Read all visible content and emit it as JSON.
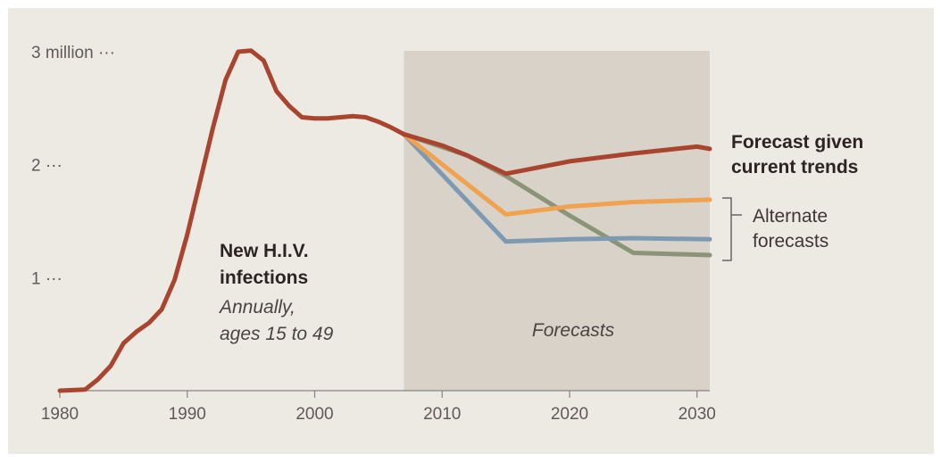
{
  "chart_data": {
    "type": "line",
    "xlim": [
      1980,
      2031
    ],
    "ylim": [
      0,
      3
    ],
    "x_ticks": [
      {
        "value": 1980,
        "label": "1980"
      },
      {
        "value": 1990,
        "label": "1990"
      },
      {
        "value": 2000,
        "label": "2000"
      },
      {
        "value": 2010,
        "label": "2010"
      },
      {
        "value": 2020,
        "label": "2020"
      },
      {
        "value": 2030,
        "label": "2030"
      }
    ],
    "y_ticks": [
      {
        "value": 1,
        "label": "1 ···"
      },
      {
        "value": 2,
        "label": "2 ···"
      },
      {
        "value": 3,
        "label": "3 million ···"
      }
    ],
    "forecast_band": {
      "from": 2007,
      "to": 2031,
      "label": "Forecasts"
    },
    "series": [
      {
        "role": "historical",
        "color": "#a9452e",
        "points": [
          [
            1980,
            0.0
          ],
          [
            1982,
            0.01
          ],
          [
            1983,
            0.1
          ],
          [
            1984,
            0.22
          ],
          [
            1985,
            0.42
          ],
          [
            1986,
            0.52
          ],
          [
            1987,
            0.6
          ],
          [
            1988,
            0.72
          ],
          [
            1989,
            0.98
          ],
          [
            1990,
            1.38
          ],
          [
            1991,
            1.85
          ],
          [
            1992,
            2.32
          ],
          [
            1993,
            2.75
          ],
          [
            1994,
            3.0
          ],
          [
            1995,
            3.01
          ],
          [
            1996,
            2.92
          ],
          [
            1997,
            2.65
          ],
          [
            1998,
            2.52
          ],
          [
            1999,
            2.42
          ],
          [
            2000,
            2.41
          ],
          [
            2001,
            2.41
          ],
          [
            2002,
            2.42
          ],
          [
            2003,
            2.43
          ],
          [
            2004,
            2.42
          ],
          [
            2005,
            2.38
          ],
          [
            2006,
            2.33
          ],
          [
            2007,
            2.27
          ]
        ]
      },
      {
        "name": "Forecast given current trends",
        "color": "#a9452e",
        "points": [
          [
            2007,
            2.27
          ],
          [
            2010,
            2.17
          ],
          [
            2012,
            2.08
          ],
          [
            2015,
            1.92
          ],
          [
            2020,
            2.03
          ],
          [
            2025,
            2.1
          ],
          [
            2030,
            2.16
          ],
          [
            2031,
            2.14
          ]
        ]
      },
      {
        "color": "#f0a24e",
        "points": [
          [
            2007,
            2.27
          ],
          [
            2015,
            1.56
          ],
          [
            2020,
            1.63
          ],
          [
            2025,
            1.67
          ],
          [
            2031,
            1.69
          ]
        ]
      },
      {
        "color": "#7d9ab2",
        "points": [
          [
            2007,
            2.27
          ],
          [
            2015,
            1.32
          ],
          [
            2020,
            1.34
          ],
          [
            2025,
            1.35
          ],
          [
            2031,
            1.34
          ]
        ]
      },
      {
        "color": "#8a9477",
        "points": [
          [
            2007,
            2.27
          ],
          [
            2012,
            2.08
          ],
          [
            2015,
            1.9
          ],
          [
            2020,
            1.55
          ],
          [
            2025,
            1.22
          ],
          [
            2031,
            1.2
          ]
        ]
      }
    ],
    "annotations": {
      "current_label": [
        "Forecast given",
        "current trends"
      ],
      "alternate_label": [
        "Alternate",
        "forecasts"
      ],
      "infections_title": [
        "New H.I.V.",
        "infections"
      ],
      "infections_subtitle": [
        "Annually,",
        "ages 15 to 49"
      ]
    }
  }
}
